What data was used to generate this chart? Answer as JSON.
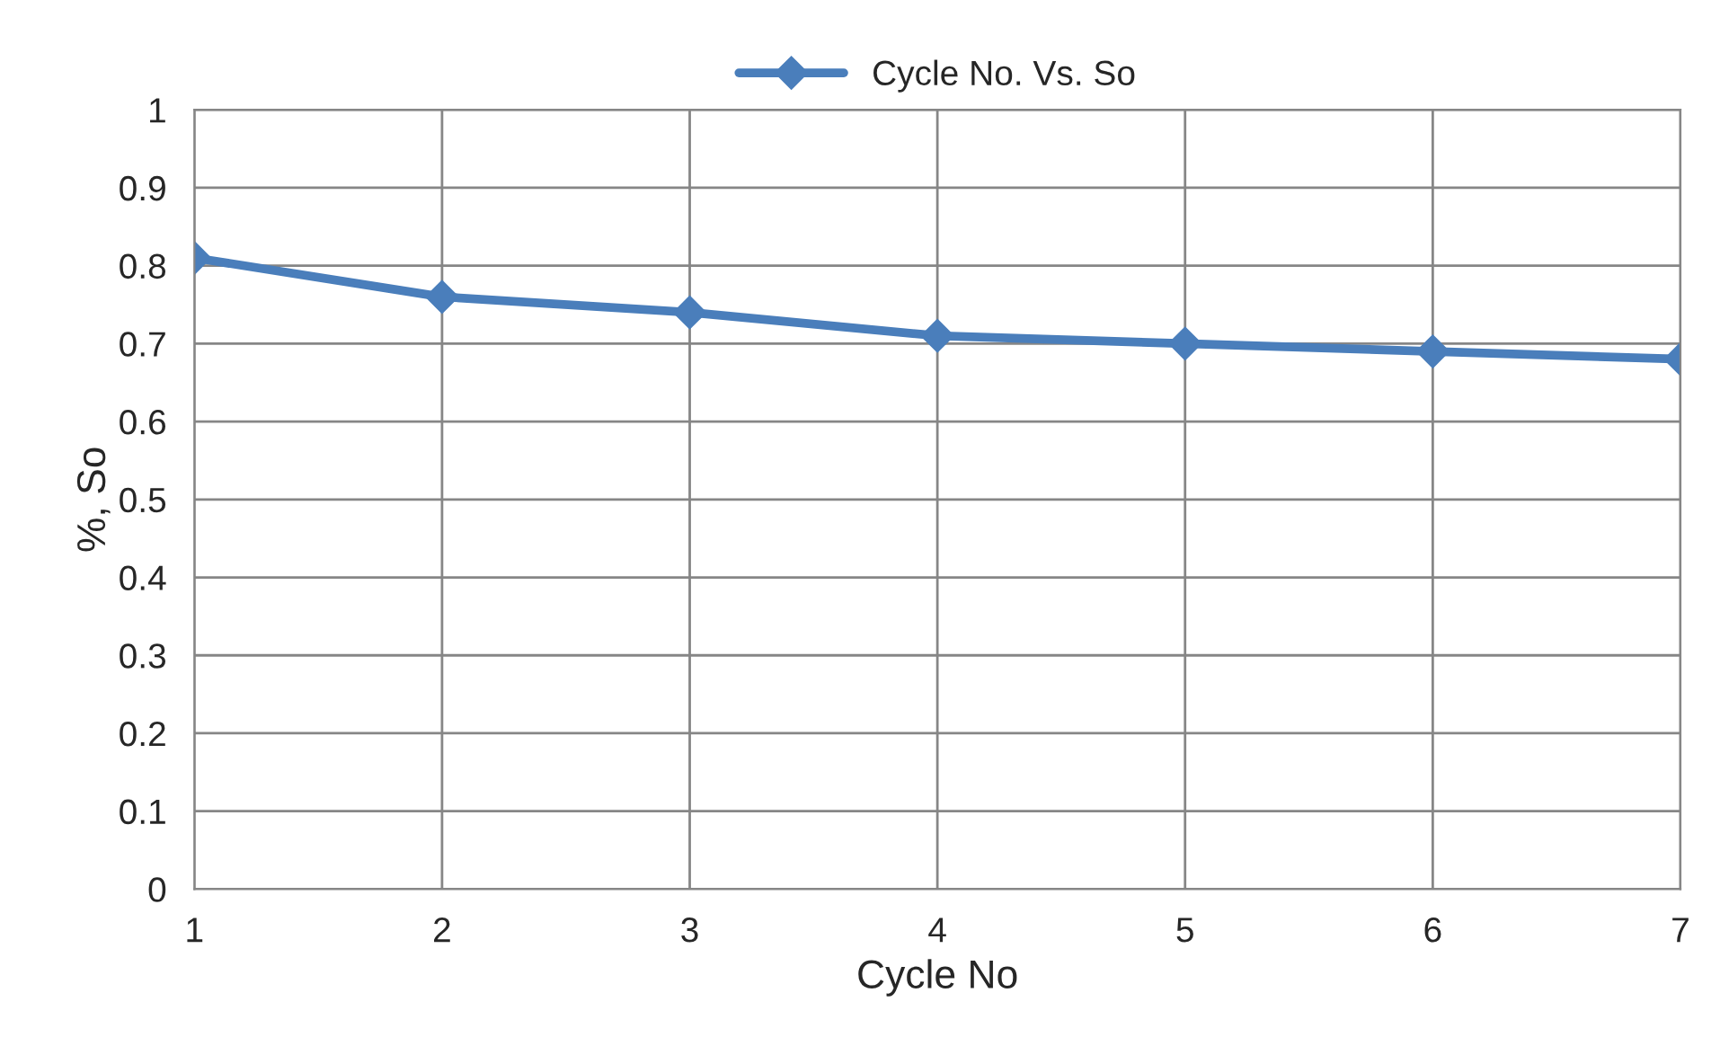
{
  "chart_data": {
    "type": "line",
    "xlabel": "Cycle No",
    "ylabel": "%, So",
    "x": [
      1,
      2,
      3,
      4,
      5,
      6,
      7
    ],
    "series": [
      {
        "name": "Cycle No. Vs. So",
        "color": "#4a7ebb",
        "values": [
          0.81,
          0.76,
          0.74,
          0.71,
          0.7,
          0.69,
          0.68
        ]
      }
    ],
    "xlim": [
      1,
      7
    ],
    "xticks": [
      1,
      2,
      3,
      4,
      5,
      6,
      7
    ],
    "ylim": [
      0,
      1
    ],
    "yticks": [
      0,
      0.1,
      0.2,
      0.3,
      0.4,
      0.5,
      0.6,
      0.7,
      0.8,
      0.9,
      1
    ],
    "grid": true,
    "legend": "top",
    "marker": "diamond",
    "line_style": "solid"
  }
}
